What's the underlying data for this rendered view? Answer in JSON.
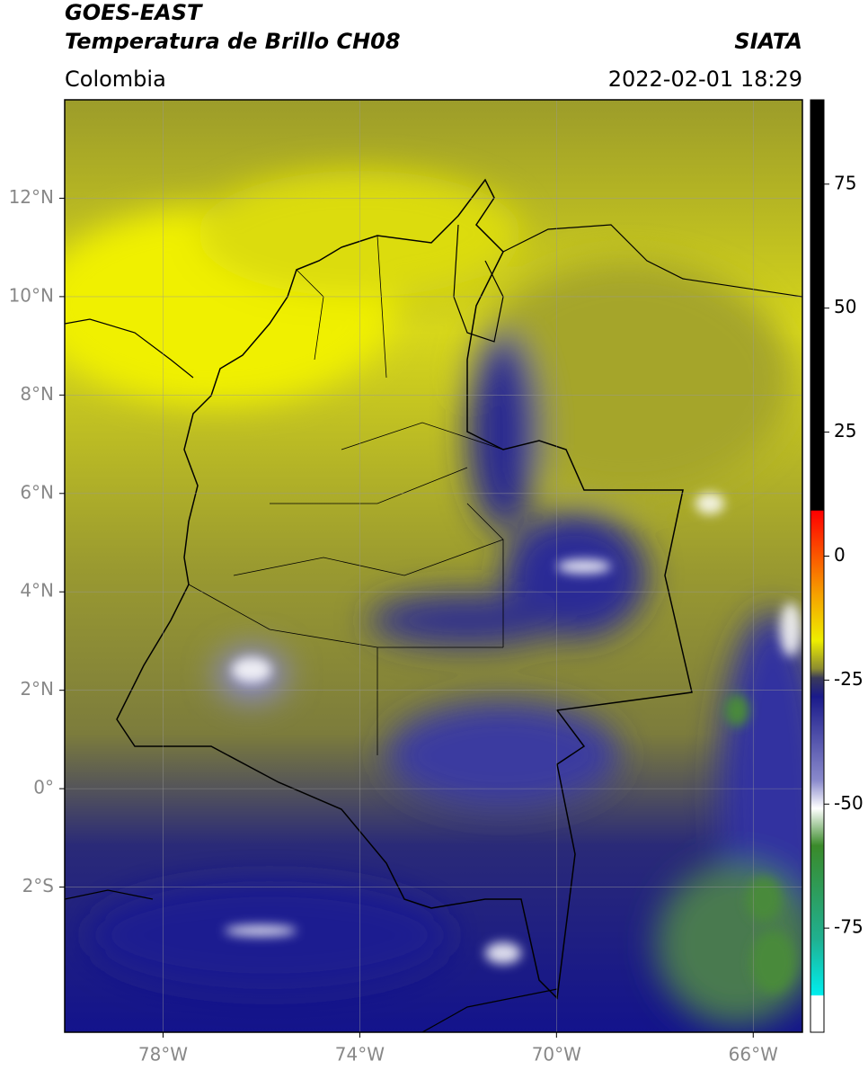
{
  "header": {
    "title": "GOES-EAST",
    "subtitle": "Temperatura de Brillo CH08",
    "source": "SIATA",
    "region": "Colombia",
    "timestamp": "2022-02-01 18:29"
  },
  "map": {
    "lon_range": [
      -80,
      -65
    ],
    "lat_range": [
      -4.95,
      14
    ],
    "lon_ticks": [
      {
        "value": -78,
        "label": "78°W"
      },
      {
        "value": -74,
        "label": "74°W"
      },
      {
        "value": -70,
        "label": "70°W"
      },
      {
        "value": -66,
        "label": "66°W"
      }
    ],
    "lat_ticks": [
      {
        "value": 12,
        "label": "12°N"
      },
      {
        "value": 10,
        "label": "10°N"
      },
      {
        "value": 8,
        "label": "8°N"
      },
      {
        "value": 6,
        "label": "6°N"
      },
      {
        "value": 4,
        "label": "4°N"
      },
      {
        "value": 2,
        "label": "2°N"
      },
      {
        "value": 0,
        "label": "0°"
      },
      {
        "value": -2,
        "label": "2°S"
      }
    ]
  },
  "colorbar": {
    "range": [
      -96,
      92
    ],
    "ticks": [
      75,
      50,
      25,
      0,
      -25,
      -50,
      -75
    ]
  }
}
